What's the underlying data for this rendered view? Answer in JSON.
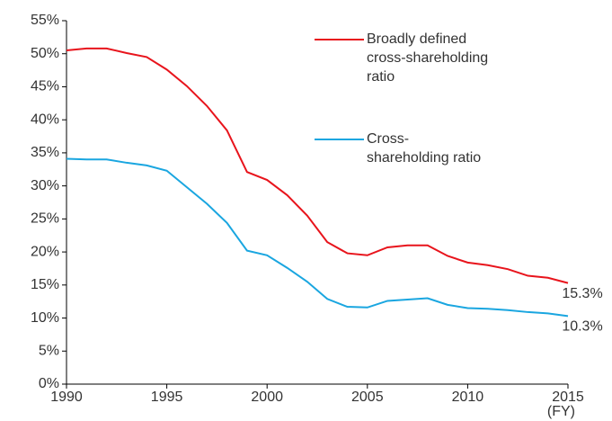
{
  "chart_data": {
    "type": "line",
    "x": [
      1990,
      1991,
      1992,
      1993,
      1994,
      1995,
      1996,
      1997,
      1998,
      1999,
      2000,
      2001,
      2002,
      2003,
      2004,
      2005,
      2006,
      2007,
      2008,
      2009,
      2010,
      2011,
      2012,
      2013,
      2014,
      2015
    ],
    "series": [
      {
        "name": "Broadly defined cross-shareholding ratio",
        "color": "#e8141c",
        "values": [
          50.5,
          50.8,
          50.8,
          50.1,
          49.5,
          47.6,
          45.1,
          42.1,
          38.4,
          32.1,
          30.9,
          28.6,
          25.5,
          21.5,
          19.8,
          19.5,
          20.7,
          21.0,
          21.0,
          19.4,
          18.4,
          18.0,
          17.4,
          16.4,
          16.1,
          15.3
        ],
        "value_labels": [
          null,
          null,
          null,
          null,
          null,
          null,
          null,
          null,
          null,
          null,
          null,
          null,
          null,
          null,
          null,
          null,
          null,
          null,
          null,
          null,
          null,
          null,
          null,
          null,
          null,
          "15.3%"
        ]
      },
      {
        "name": "Cross-shareholding ratio",
        "color": "#1aa6e0",
        "values": [
          34.1,
          34.0,
          34.0,
          33.5,
          33.1,
          32.3,
          29.8,
          27.3,
          24.4,
          20.2,
          19.5,
          17.6,
          15.5,
          12.9,
          11.7,
          11.6,
          12.6,
          12.8,
          13.0,
          12.0,
          11.5,
          11.4,
          11.2,
          10.9,
          10.7,
          10.3
        ],
        "value_labels": [
          null,
          null,
          null,
          null,
          null,
          null,
          null,
          null,
          null,
          null,
          null,
          null,
          null,
          null,
          null,
          null,
          null,
          null,
          null,
          null,
          null,
          null,
          null,
          null,
          null,
          "10.3%"
        ]
      }
    ],
    "xlabel": "(FY)",
    "xlim": [
      1990,
      2015
    ],
    "xticks": [
      1990,
      1995,
      2000,
      2005,
      2010,
      2015
    ],
    "ylim": [
      0,
      55
    ],
    "yticks": [
      {
        "value": 0,
        "label": "0%"
      },
      {
        "value": 5,
        "label": "5%"
      },
      {
        "value": 10,
        "label": "10%"
      },
      {
        "value": 15,
        "label": "15%"
      },
      {
        "value": 20,
        "label": "20%"
      },
      {
        "value": 25,
        "label": "25%"
      },
      {
        "value": 30,
        "label": "30%"
      },
      {
        "value": 35,
        "label": "35%"
      },
      {
        "value": 40,
        "label": "40%"
      },
      {
        "value": 45,
        "label": "45%"
      },
      {
        "value": 50,
        "label": "50%"
      },
      {
        "value": 55,
        "label": "55%"
      }
    ],
    "grid": false
  }
}
